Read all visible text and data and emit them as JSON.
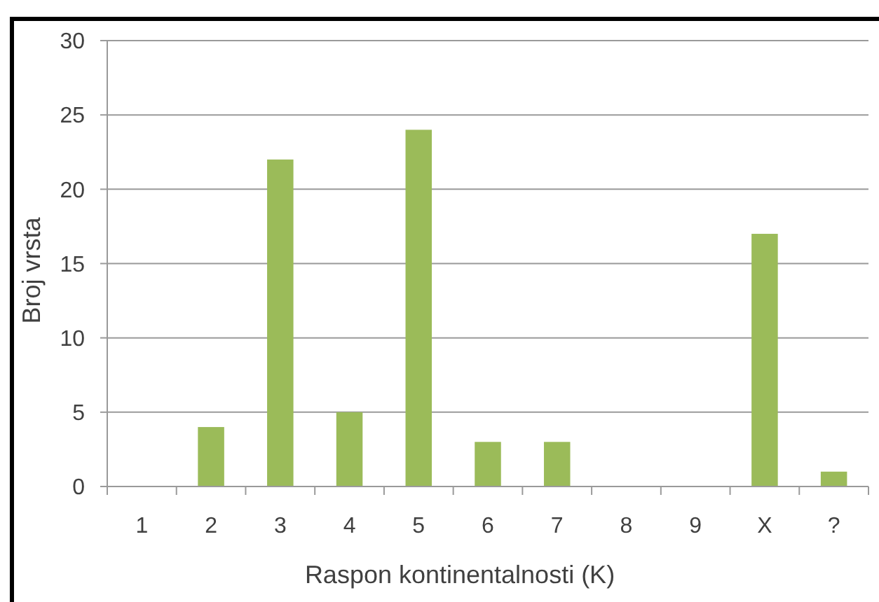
{
  "chart_data": {
    "type": "bar",
    "xlabel": "Raspon kontinentalnosti (K)",
    "ylabel": "Broj vrsta",
    "categories": [
      "1",
      "2",
      "3",
      "4",
      "5",
      "6",
      "7",
      "8",
      "9",
      "X",
      "?"
    ],
    "values": [
      0,
      4,
      22,
      5,
      24,
      3,
      3,
      0,
      0,
      17,
      1
    ],
    "color": "#9bbb59",
    "ylim": [
      0,
      30
    ],
    "yticks": [
      0,
      5,
      10,
      15,
      20,
      25,
      30
    ],
    "grid": "y"
  }
}
